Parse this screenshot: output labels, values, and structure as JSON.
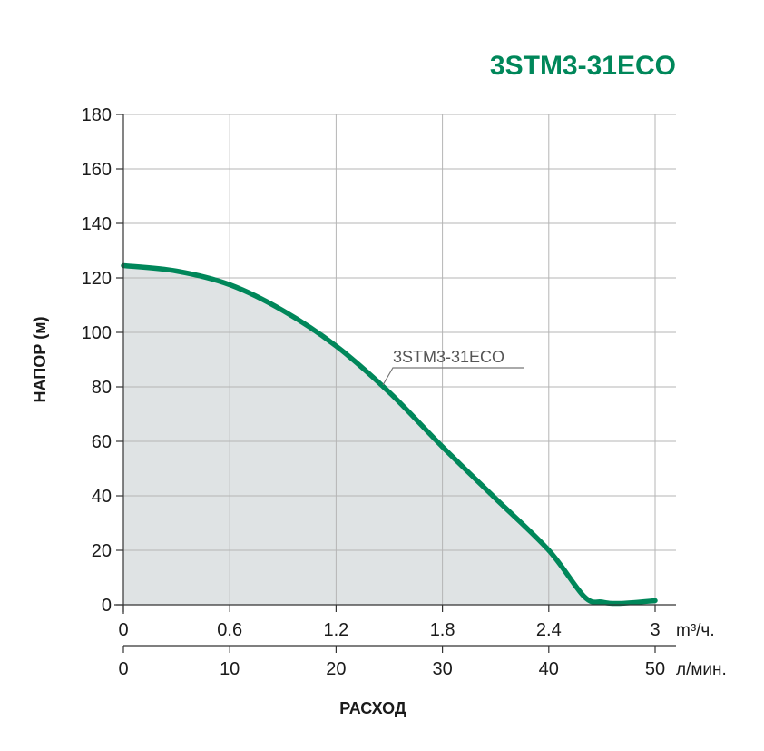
{
  "chart_data": {
    "type": "area",
    "title": "3STM3-31ECO",
    "ylabel": "НАПОР (м)",
    "xlabel": "РАСХОД",
    "ylim": [
      0,
      180
    ],
    "xlim": [
      0,
      3
    ],
    "y_ticks": [
      "0",
      "20",
      "40",
      "60",
      "80",
      "100",
      "120",
      "140",
      "160",
      "180"
    ],
    "x_ticks_m3h": [
      "0",
      "0.6",
      "1.2",
      "1.8",
      "2.4",
      "3"
    ],
    "x_unit_m3h": "m³/ч.",
    "x_ticks_lmin": [
      "0",
      "10",
      "20",
      "30",
      "40",
      "50"
    ],
    "x_unit_lmin": "л/мин.",
    "grid": true,
    "series": [
      {
        "name": "3STM3-31ECO",
        "x": [
          0,
          0.3,
          0.6,
          0.9,
          1.2,
          1.5,
          1.8,
          2.1,
          2.4,
          2.6,
          2.7,
          2.8,
          3.0
        ],
        "y": [
          124.5,
          122.5,
          117.5,
          108,
          95,
          78,
          58,
          39,
          20,
          3,
          1,
          0.5,
          1.5
        ]
      }
    ],
    "colors": {
      "curve": "#00875a",
      "fill": "#dfe3e4",
      "grid": "#b5b5b5",
      "axis": "#333333",
      "title": "#00875a"
    }
  }
}
